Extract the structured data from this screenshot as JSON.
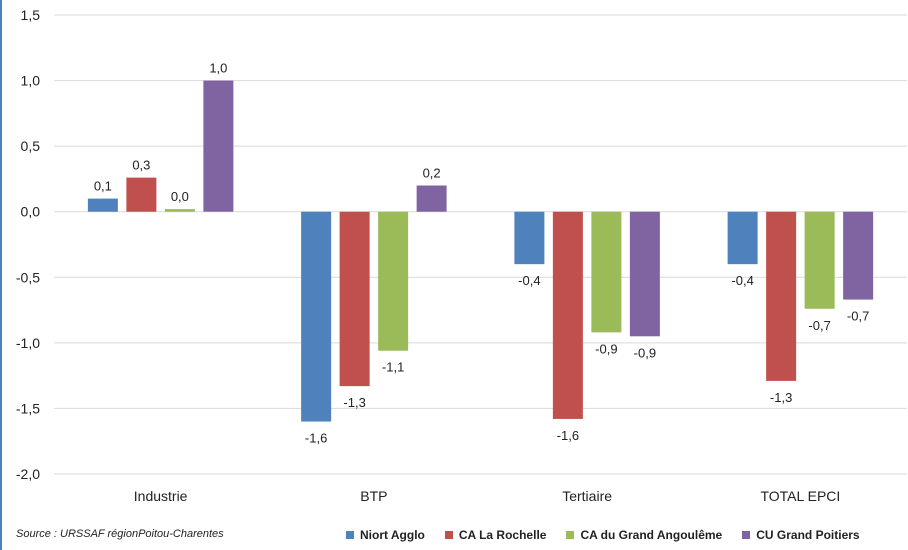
{
  "chart_data": {
    "type": "bar",
    "categories": [
      "Industrie",
      "BTP",
      "Tertiaire",
      "TOTAL EPCI"
    ],
    "series": [
      {
        "name": "Niort Agglo",
        "color": "#4f81bd",
        "values": [
          0.1,
          -1.6,
          -0.4,
          -0.4
        ],
        "labels": [
          "0,1",
          "-1,6",
          "-0,4",
          "-0,4"
        ]
      },
      {
        "name": "CA La Rochelle",
        "color": "#c0504d",
        "values": [
          0.26,
          -1.33,
          -1.58,
          -1.29
        ],
        "labels": [
          "0,3",
          "-1,3",
          "-1,6",
          "-1,3"
        ]
      },
      {
        "name": "CA du Grand Angoulême",
        "color": "#9bbb59",
        "values": [
          0.02,
          -1.06,
          -0.92,
          -0.74
        ],
        "labels": [
          "0,0",
          "-1,1",
          "-0,9",
          "-0,7"
        ]
      },
      {
        "name": "CU Grand Poitiers",
        "color": "#8064a2",
        "values": [
          1.0,
          0.2,
          -0.95,
          -0.67
        ],
        "labels": [
          "1,0",
          "0,2",
          "-0,9",
          "-0,7"
        ]
      }
    ],
    "ylim": [
      -2.0,
      1.5
    ],
    "yticks": [
      1.5,
      1.0,
      0.5,
      0.0,
      -0.5,
      -1.0,
      -1.5,
      -2.0
    ],
    "ytick_labels": [
      "1,5",
      "1,0",
      "0,5",
      "0,0",
      "-0,5",
      "-1,0",
      "-1,5",
      "-2,0"
    ],
    "grid": true,
    "legend": "bottom-right"
  },
  "source": "Source : URSSAF régionPoitou-Charentes"
}
